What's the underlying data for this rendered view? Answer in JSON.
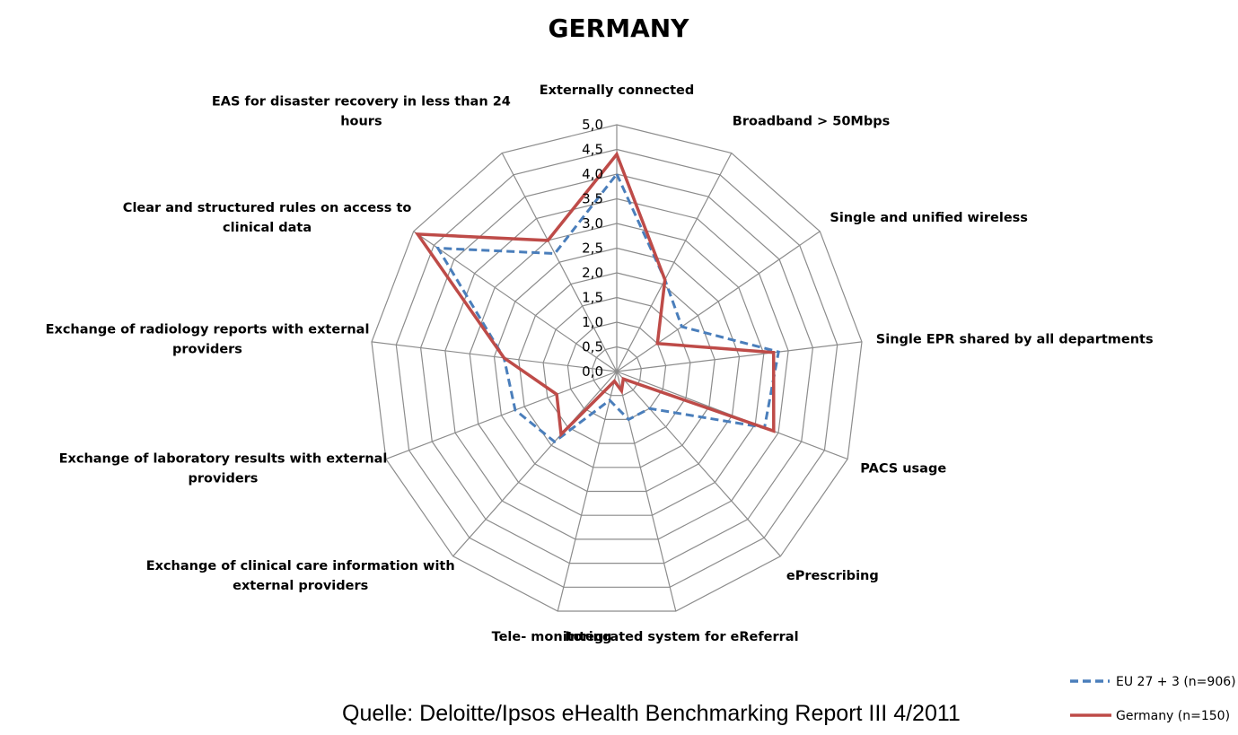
{
  "chart_data": {
    "type": "radar",
    "title": "GERMANY",
    "source": "Quelle: Deloitte/Ipsos eHealth Benchmarking Report III 4/2011",
    "rlim": [
      0,
      5
    ],
    "ticks": [
      "0,0",
      "0,5",
      "1,0",
      "1,5",
      "2,0",
      "2,5",
      "3,0",
      "3,5",
      "4,0",
      "4,5",
      "5,0"
    ],
    "grid": true,
    "legend_position": "bottom-right",
    "categories": [
      [
        "Externally connected"
      ],
      [
        "Broadband > 50Mbps"
      ],
      [
        "Single and unified wireless"
      ],
      [
        "Single EPR shared by all departments"
      ],
      [
        "PACS usage"
      ],
      [
        "ePrescribing"
      ],
      [
        "Integrated system for eReferral"
      ],
      [
        "Tele- monitoring"
      ],
      [
        "Exchange of clinical  care information with",
        "external providers"
      ],
      [
        "Exchange of laboratory results with external",
        "providers"
      ],
      [
        "Exchange of radiology  reports with external",
        "providers"
      ],
      [
        "Clear and structured rules on access  to",
        "clinical  data"
      ],
      [
        "EAS for disaster recovery in less than 24",
        "hours"
      ]
    ],
    "series": [
      {
        "name": "EU 27 + 3  (n=906)",
        "color": "#4a7ebb",
        "style": "dashed",
        "values": [
          4.0,
          2.1,
          1.6,
          3.3,
          3.2,
          1.0,
          1.0,
          0.6,
          1.9,
          2.2,
          2.3,
          4.4,
          2.7
        ]
      },
      {
        "name": "Germany (n=150)",
        "color": "#be4b48",
        "style": "solid",
        "values": [
          4.4,
          2.1,
          1.0,
          3.2,
          3.4,
          0.2,
          0.4,
          0.2,
          1.7,
          1.3,
          2.3,
          4.9,
          3.0
        ]
      }
    ]
  }
}
